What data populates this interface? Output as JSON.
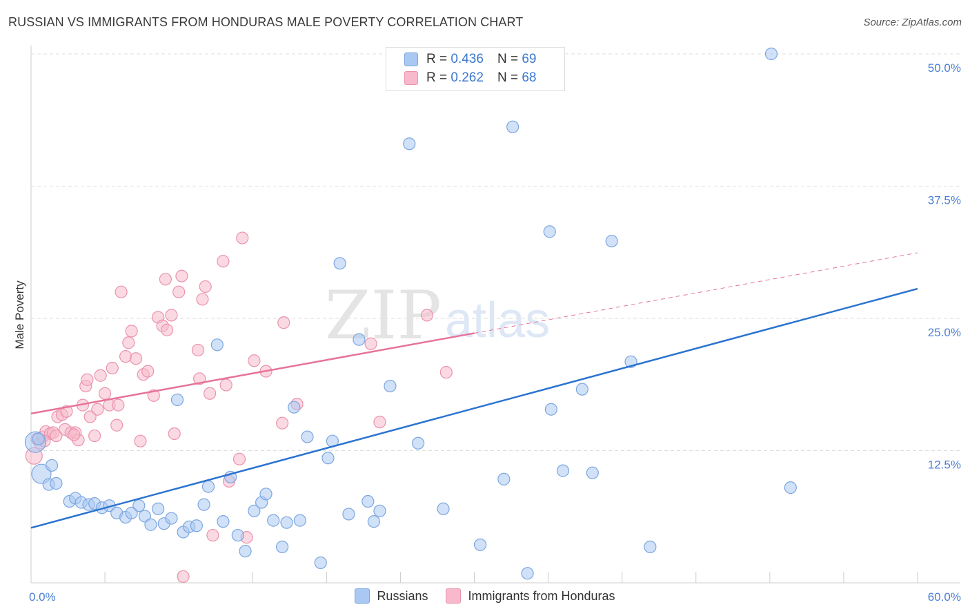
{
  "title": "RUSSIAN VS IMMIGRANTS FROM HONDURAS MALE POVERTY CORRELATION CHART",
  "source": "Source: ZipAtlas.com",
  "colors": {
    "blue_fill": "#a9c8f2",
    "blue_stroke": "#7ca6e0",
    "blue_line": "#2a73d0",
    "pink_fill": "#f7b9cb",
    "pink_stroke": "#ea93ad",
    "pink_line": "#e6739a",
    "grid": "#dddddd",
    "tick_text": "#4a7fd4"
  },
  "legend": {
    "rows": [
      {
        "r_label": "R =",
        "r_value": "0.436",
        "n_label": "N =",
        "n_value": "69",
        "color": "#a9c8f2"
      },
      {
        "r_label": "R =",
        "r_value": "0.262",
        "n_label": "N =",
        "n_value": "68",
        "color": "#f7b9cb"
      }
    ]
  },
  "bottom_legend": [
    {
      "label": "Russians",
      "color": "#a9c8f2"
    },
    {
      "label": "Immigrants from Honduras",
      "color": "#f7b9cb"
    }
  ],
  "watermark": {
    "zip": "ZIP",
    "atlas": "atlas"
  },
  "chart_data": {
    "type": "scatter",
    "title": "RUSSIAN VS IMMIGRANTS FROM HONDURAS MALE POVERTY CORRELATION CHART",
    "xlabel": "",
    "ylabel": "Male Poverty",
    "xlim": [
      0,
      60
    ],
    "ylim": [
      0,
      50
    ],
    "x_tick_labels": [
      "0.0%",
      "60.0%"
    ],
    "y_ticks": [
      12.5,
      25.0,
      37.5,
      50.0
    ],
    "y_tick_labels": [
      "12.5%",
      "25.0%",
      "37.5%",
      "50.0%"
    ],
    "series": [
      {
        "name": "Russians",
        "R": 0.436,
        "N": 69,
        "trend": {
          "x": [
            0,
            60
          ],
          "y": [
            5.2,
            27.8
          ],
          "dashed_from": null
        },
        "points": [
          [
            0.3,
            13.3
          ],
          [
            0.7,
            10.3
          ],
          [
            1.2,
            9.3
          ],
          [
            1.4,
            11.1
          ],
          [
            1.7,
            9.4
          ],
          [
            2.6,
            7.7
          ],
          [
            3.0,
            8.0
          ],
          [
            3.4,
            7.6
          ],
          [
            3.9,
            7.4
          ],
          [
            4.3,
            7.5
          ],
          [
            4.8,
            7.1
          ],
          [
            5.3,
            7.3
          ],
          [
            5.8,
            6.6
          ],
          [
            6.4,
            6.2
          ],
          [
            6.8,
            6.6
          ],
          [
            7.3,
            7.3
          ],
          [
            7.7,
            6.3
          ],
          [
            8.1,
            5.5
          ],
          [
            8.6,
            7.0
          ],
          [
            9.0,
            5.6
          ],
          [
            9.5,
            6.1
          ],
          [
            9.9,
            17.3
          ],
          [
            10.3,
            4.8
          ],
          [
            10.7,
            5.3
          ],
          [
            11.2,
            5.4
          ],
          [
            11.7,
            7.4
          ],
          [
            12.0,
            9.1
          ],
          [
            12.6,
            22.5
          ],
          [
            13.0,
            5.8
          ],
          [
            13.5,
            10.0
          ],
          [
            14.0,
            4.5
          ],
          [
            14.5,
            3.0
          ],
          [
            15.1,
            6.8
          ],
          [
            15.6,
            7.6
          ],
          [
            15.9,
            8.4
          ],
          [
            16.4,
            5.9
          ],
          [
            17.0,
            3.4
          ],
          [
            17.3,
            5.7
          ],
          [
            17.8,
            16.6
          ],
          [
            18.2,
            5.9
          ],
          [
            18.7,
            13.8
          ],
          [
            19.6,
            1.9
          ],
          [
            20.1,
            11.8
          ],
          [
            20.4,
            13.4
          ],
          [
            20.9,
            30.2
          ],
          [
            21.5,
            6.5
          ],
          [
            22.2,
            23.0
          ],
          [
            22.8,
            7.7
          ],
          [
            23.2,
            5.8
          ],
          [
            23.6,
            6.8
          ],
          [
            24.3,
            18.6
          ],
          [
            25.6,
            41.5
          ],
          [
            26.2,
            13.2
          ],
          [
            27.9,
            7.0
          ],
          [
            30.4,
            3.6
          ],
          [
            32.0,
            9.8
          ],
          [
            32.6,
            43.1
          ],
          [
            33.6,
            0.9
          ],
          [
            35.1,
            33.2
          ],
          [
            35.2,
            16.4
          ],
          [
            36.0,
            10.6
          ],
          [
            37.3,
            18.3
          ],
          [
            38.0,
            10.4
          ],
          [
            39.3,
            32.3
          ],
          [
            40.6,
            20.9
          ],
          [
            41.9,
            3.4
          ],
          [
            50.1,
            50.0
          ],
          [
            51.4,
            9.0
          ],
          [
            0.5,
            13.6
          ]
        ]
      },
      {
        "name": "Immigrants from Honduras",
        "R": 0.262,
        "N": 68,
        "trend": {
          "x": [
            0,
            60
          ],
          "y": [
            16.0,
            31.2
          ],
          "dashed_from": 30
        },
        "points": [
          [
            0.2,
            12.0
          ],
          [
            0.4,
            13.6
          ],
          [
            0.6,
            13.2
          ],
          [
            0.8,
            13.8
          ],
          [
            1.0,
            14.3
          ],
          [
            1.3,
            14.1
          ],
          [
            1.5,
            14.2
          ],
          [
            1.7,
            13.9
          ],
          [
            1.8,
            15.7
          ],
          [
            2.1,
            15.9
          ],
          [
            2.3,
            14.5
          ],
          [
            2.4,
            16.2
          ],
          [
            2.7,
            14.2
          ],
          [
            3.0,
            14.2
          ],
          [
            3.2,
            13.5
          ],
          [
            3.5,
            16.8
          ],
          [
            3.7,
            18.6
          ],
          [
            3.8,
            19.2
          ],
          [
            4.0,
            15.7
          ],
          [
            4.3,
            13.9
          ],
          [
            4.5,
            16.4
          ],
          [
            4.7,
            19.6
          ],
          [
            5.0,
            17.9
          ],
          [
            5.3,
            16.8
          ],
          [
            5.5,
            20.3
          ],
          [
            5.8,
            14.9
          ],
          [
            5.9,
            16.8
          ],
          [
            6.1,
            27.5
          ],
          [
            6.4,
            21.4
          ],
          [
            6.6,
            22.7
          ],
          [
            6.8,
            23.8
          ],
          [
            7.1,
            21.2
          ],
          [
            7.4,
            13.4
          ],
          [
            7.6,
            19.7
          ],
          [
            7.9,
            20.0
          ],
          [
            8.3,
            17.7
          ],
          [
            8.6,
            25.1
          ],
          [
            8.9,
            24.3
          ],
          [
            9.1,
            28.7
          ],
          [
            9.2,
            23.9
          ],
          [
            9.5,
            25.3
          ],
          [
            9.7,
            14.1
          ],
          [
            10.0,
            27.5
          ],
          [
            10.2,
            29.0
          ],
          [
            10.3,
            0.6
          ],
          [
            11.3,
            22.0
          ],
          [
            11.4,
            19.3
          ],
          [
            11.6,
            26.8
          ],
          [
            11.8,
            28.0
          ],
          [
            12.1,
            17.9
          ],
          [
            12.3,
            4.5
          ],
          [
            13.0,
            30.4
          ],
          [
            13.2,
            18.7
          ],
          [
            13.4,
            9.6
          ],
          [
            14.1,
            11.7
          ],
          [
            14.3,
            32.6
          ],
          [
            14.6,
            4.3
          ],
          [
            15.1,
            21.0
          ],
          [
            15.9,
            20.0
          ],
          [
            17.0,
            15.1
          ],
          [
            17.1,
            24.6
          ],
          [
            18.0,
            16.9
          ],
          [
            23.0,
            22.6
          ],
          [
            23.6,
            15.2
          ],
          [
            26.8,
            25.3
          ],
          [
            28.1,
            19.9
          ],
          [
            0.9,
            13.4
          ],
          [
            2.9,
            14.0
          ]
        ]
      }
    ]
  }
}
